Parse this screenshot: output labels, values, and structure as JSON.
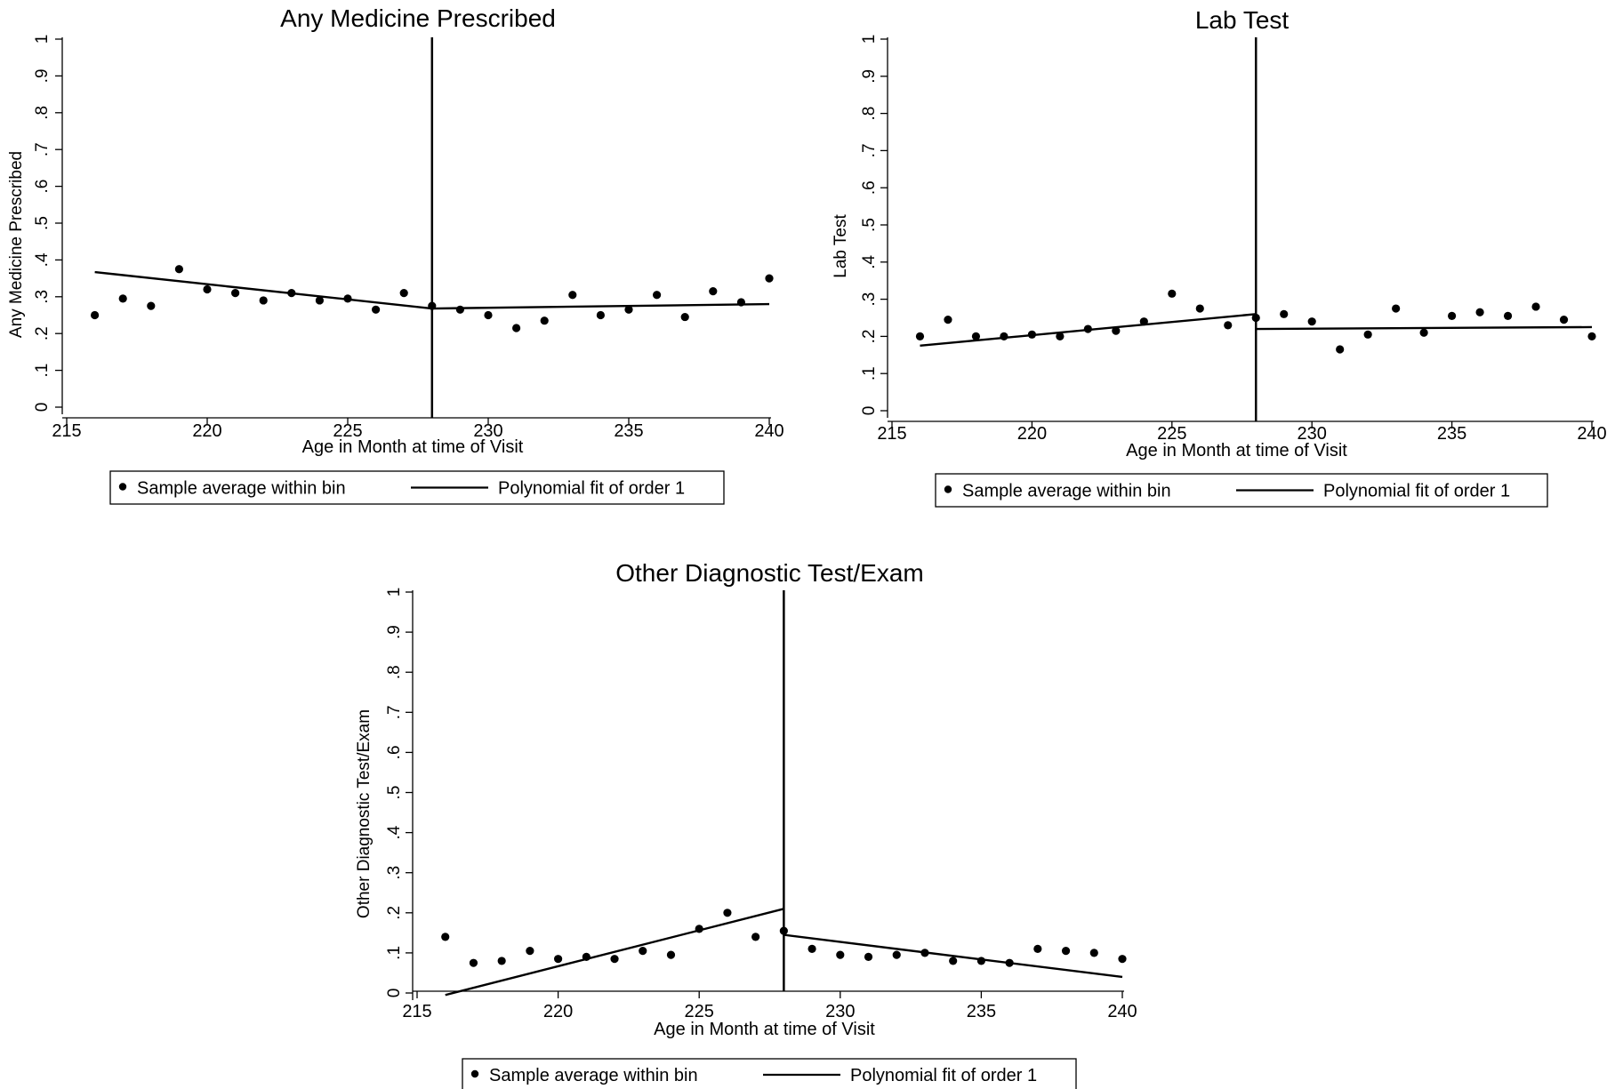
{
  "chart_data": [
    {
      "type": "scatter",
      "title": "Any Medicine Prescribed",
      "xlabel": "Age in Month at time of Visit",
      "ylabel": "Any Medicine Prescribed",
      "xlim": [
        215,
        240
      ],
      "ylim": [
        0,
        1
      ],
      "xticks": [
        "215",
        "220",
        "225",
        "230",
        "235",
        "240"
      ],
      "yticks": [
        "0",
        ".1",
        ".2",
        ".3",
        ".4",
        ".5",
        ".6",
        ".7",
        ".8",
        ".9",
        "1"
      ],
      "cutoff": 228,
      "grid": false,
      "legend_position": "bottom",
      "series": [
        {
          "name": "Sample average within bin",
          "kind": "points",
          "x": [
            216,
            217,
            218,
            219,
            220,
            221,
            222,
            223,
            224,
            225,
            226,
            227,
            228,
            229,
            230,
            231,
            232,
            233,
            234,
            235,
            236,
            237,
            238,
            239,
            240
          ],
          "y": [
            0.25,
            0.295,
            0.275,
            0.375,
            0.32,
            0.31,
            0.29,
            0.31,
            0.29,
            0.295,
            0.265,
            0.31,
            0.275,
            0.265,
            0.25,
            0.215,
            0.235,
            0.305,
            0.25,
            0.265,
            0.305,
            0.245,
            0.315,
            0.285,
            0.35
          ]
        },
        {
          "name": "Polynomial fit of order 1",
          "kind": "lines",
          "segments": [
            {
              "x": [
                216,
                228
              ],
              "y": [
                0.367,
                0.268
              ]
            },
            {
              "x": [
                228,
                240
              ],
              "y": [
                0.268,
                0.28
              ]
            }
          ]
        }
      ]
    },
    {
      "type": "scatter",
      "title": "Lab Test",
      "xlabel": "Age in Month at time of Visit",
      "ylabel": "Lab Test",
      "xlim": [
        215,
        240
      ],
      "ylim": [
        0,
        1
      ],
      "xticks": [
        "215",
        "220",
        "225",
        "230",
        "235",
        "240"
      ],
      "yticks": [
        "0",
        ".1",
        ".2",
        ".3",
        ".4",
        ".5",
        ".6",
        ".7",
        ".8",
        ".9",
        "1"
      ],
      "cutoff": 228,
      "grid": false,
      "legend_position": "bottom",
      "series": [
        {
          "name": "Sample average within bin",
          "kind": "points",
          "x": [
            216,
            217,
            218,
            219,
            220,
            221,
            222,
            223,
            224,
            225,
            226,
            227,
            228,
            229,
            230,
            231,
            232,
            233,
            234,
            235,
            236,
            237,
            238,
            239,
            240
          ],
          "y": [
            0.2,
            0.245,
            0.2,
            0.2,
            0.205,
            0.2,
            0.22,
            0.215,
            0.24,
            0.315,
            0.275,
            0.23,
            0.25,
            0.26,
            0.24,
            0.165,
            0.205,
            0.275,
            0.21,
            0.255,
            0.265,
            0.255,
            0.28,
            0.245,
            0.2
          ]
        },
        {
          "name": "Polynomial fit of order 1",
          "kind": "lines",
          "segments": [
            {
              "x": [
                216,
                228
              ],
              "y": [
                0.175,
                0.26
              ]
            },
            {
              "x": [
                228,
                240
              ],
              "y": [
                0.22,
                0.225
              ]
            }
          ]
        }
      ]
    },
    {
      "type": "scatter",
      "title": "Other Diagnostic Test/Exam",
      "xlabel": "Age in Month at time of Visit",
      "ylabel": "Other Diagnostic Test/Exam",
      "xlim": [
        215,
        240
      ],
      "ylim": [
        0,
        1
      ],
      "xticks": [
        "215",
        "220",
        "225",
        "230",
        "235",
        "240"
      ],
      "yticks": [
        "0",
        ".1",
        ".2",
        ".3",
        ".4",
        ".5",
        ".6",
        ".7",
        ".8",
        ".9",
        "1"
      ],
      "cutoff": 228,
      "grid": false,
      "legend_position": "bottom",
      "series": [
        {
          "name": "Sample average within bin",
          "kind": "points",
          "x": [
            216,
            217,
            218,
            219,
            220,
            221,
            222,
            223,
            224,
            225,
            226,
            227,
            228,
            229,
            230,
            231,
            232,
            233,
            234,
            235,
            236,
            237,
            238,
            239,
            240
          ],
          "y": [
            0.14,
            0.075,
            0.08,
            0.105,
            0.085,
            0.09,
            0.085,
            0.105,
            0.095,
            0.16,
            0.2,
            0.14,
            0.155,
            0.11,
            0.095,
            0.09,
            0.095,
            0.1,
            0.08,
            0.08,
            0.075,
            0.11,
            0.105,
            0.1,
            0.085
          ]
        },
        {
          "name": "Polynomial fit of order 1",
          "kind": "lines",
          "segments": [
            {
              "x": [
                216,
                228
              ],
              "y": [
                -0.005,
                0.21
              ]
            },
            {
              "x": [
                228,
                240
              ],
              "y": [
                0.145,
                0.04
              ]
            }
          ]
        }
      ]
    }
  ]
}
